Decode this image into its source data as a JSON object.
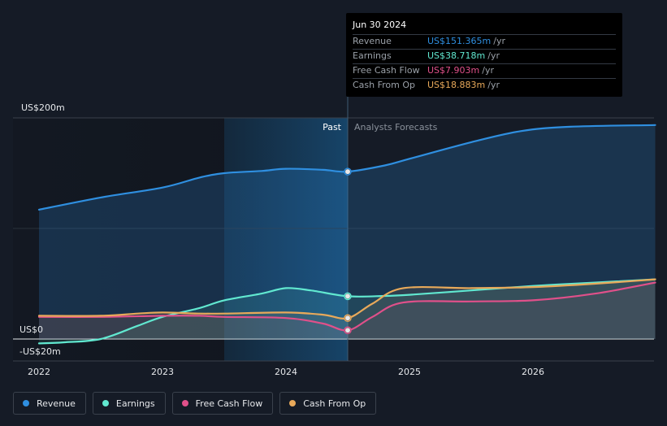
{
  "tooltip": {
    "date": "Jun 30 2024",
    "rows": [
      {
        "name": "Revenue",
        "value": "US$151.365m",
        "unit": "/yr",
        "color": "#2f8fe0"
      },
      {
        "name": "Earnings",
        "value": "US$38.718m",
        "unit": "/yr",
        "color": "#61e8d0"
      },
      {
        "name": "Free Cash Flow",
        "value": "US$7.903m",
        "unit": "/yr",
        "color": "#e0508a"
      },
      {
        "name": "Cash From Op",
        "value": "US$18.883m",
        "unit": "/yr",
        "color": "#e8a95a"
      }
    ]
  },
  "sections": {
    "past": "Past",
    "forecast": "Analysts Forecasts"
  },
  "legend": [
    {
      "label": "Revenue",
      "color": "#2f8fe0"
    },
    {
      "label": "Earnings",
      "color": "#61e8d0"
    },
    {
      "label": "Free Cash Flow",
      "color": "#e0508a"
    },
    {
      "label": "Cash From Op",
      "color": "#e8a95a"
    }
  ],
  "chart_data": {
    "type": "line",
    "x_ticks": [
      "2022",
      "2023",
      "2024",
      "2025",
      "2026"
    ],
    "y_tick_labels": [
      "US$200m",
      "US$0",
      "-US$20m"
    ],
    "ylim": [
      -20,
      200
    ],
    "xlim": [
      2021.8,
      2026.99
    ],
    "divider_x": 2024.5,
    "highlight_start_x": 2023.5,
    "series": [
      {
        "name": "Revenue",
        "color": "#2f8fe0",
        "points": [
          [
            2022.0,
            117
          ],
          [
            2022.5,
            128
          ],
          [
            2023.0,
            137
          ],
          [
            2023.3,
            146
          ],
          [
            2023.5,
            150
          ],
          [
            2023.8,
            152
          ],
          [
            2024.0,
            154
          ],
          [
            2024.3,
            153
          ],
          [
            2024.5,
            151.4
          ],
          [
            2024.8,
            157
          ],
          [
            2025.0,
            163
          ],
          [
            2025.5,
            178
          ],
          [
            2025.9,
            188
          ],
          [
            2026.3,
            192
          ],
          [
            2026.99,
            193.5
          ]
        ]
      },
      {
        "name": "Earnings",
        "color": "#61e8d0",
        "points": [
          [
            2022.0,
            -4
          ],
          [
            2022.2,
            -3
          ],
          [
            2022.5,
            0
          ],
          [
            2022.8,
            12
          ],
          [
            2023.0,
            20
          ],
          [
            2023.3,
            28
          ],
          [
            2023.5,
            35
          ],
          [
            2023.8,
            41
          ],
          [
            2024.0,
            46
          ],
          [
            2024.2,
            44
          ],
          [
            2024.5,
            38.7
          ],
          [
            2024.8,
            39
          ],
          [
            2025.0,
            40
          ],
          [
            2025.5,
            44
          ],
          [
            2026.0,
            48
          ],
          [
            2026.5,
            51
          ],
          [
            2026.99,
            54
          ]
        ]
      },
      {
        "name": "Free Cash Flow",
        "color": "#e0508a",
        "points": [
          [
            2022.0,
            20
          ],
          [
            2022.5,
            20
          ],
          [
            2023.0,
            21
          ],
          [
            2023.3,
            21
          ],
          [
            2023.5,
            20
          ],
          [
            2024.0,
            19
          ],
          [
            2024.3,
            14
          ],
          [
            2024.5,
            7.9
          ],
          [
            2024.7,
            20
          ],
          [
            2024.95,
            33
          ],
          [
            2025.5,
            34
          ],
          [
            2026.0,
            35
          ],
          [
            2026.5,
            41
          ],
          [
            2026.99,
            51
          ]
        ]
      },
      {
        "name": "Cash From Op",
        "color": "#e8a95a",
        "points": [
          [
            2022.0,
            21
          ],
          [
            2022.5,
            21
          ],
          [
            2022.8,
            23
          ],
          [
            2023.0,
            24
          ],
          [
            2023.3,
            23
          ],
          [
            2023.5,
            23
          ],
          [
            2024.0,
            24
          ],
          [
            2024.3,
            22
          ],
          [
            2024.5,
            18.9
          ],
          [
            2024.7,
            32
          ],
          [
            2024.95,
            46
          ],
          [
            2025.5,
            46
          ],
          [
            2026.0,
            47
          ],
          [
            2026.5,
            50
          ],
          [
            2026.99,
            54
          ]
        ]
      }
    ]
  }
}
